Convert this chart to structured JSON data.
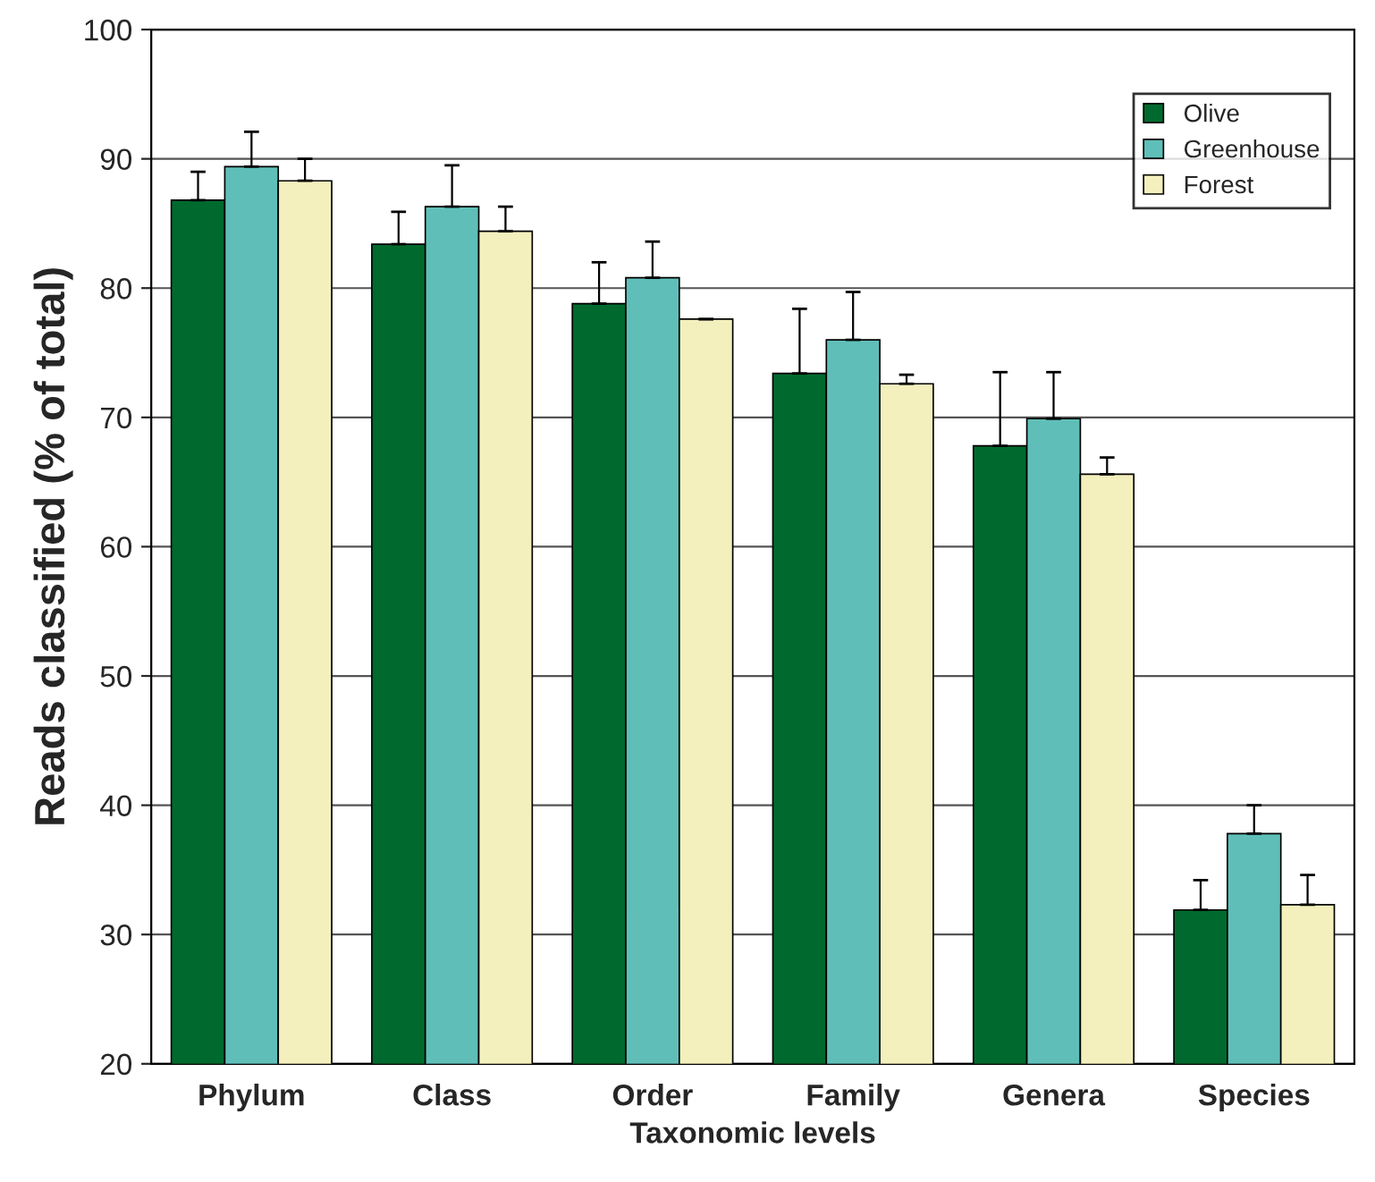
{
  "chart_data": {
    "type": "bar",
    "xlabel": "Taxonomic levels",
    "ylabel": "Reads classified (% of total)",
    "categories": [
      "Phylum",
      "Class",
      "Order",
      "Family",
      "Genera",
      "Species"
    ],
    "series": [
      {
        "name": "Olive",
        "color": "#006a2e",
        "values": [
          86.8,
          83.4,
          78.8,
          73.4,
          67.8,
          31.9
        ],
        "errors": [
          [
            86.8,
            89.0
          ],
          [
            83.4,
            85.9
          ],
          [
            78.8,
            82.0
          ],
          [
            73.4,
            78.4
          ],
          [
            67.8,
            73.5
          ],
          [
            31.9,
            34.2
          ]
        ]
      },
      {
        "name": "Greenhouse",
        "color": "#5fbfb8",
        "values": [
          89.4,
          86.3,
          80.8,
          76.0,
          69.9,
          37.8
        ],
        "errors": [
          [
            89.4,
            92.1
          ],
          [
            86.3,
            89.5
          ],
          [
            80.8,
            83.6
          ],
          [
            76.0,
            79.7
          ],
          [
            69.9,
            73.5
          ],
          [
            37.8,
            40.0
          ]
        ]
      },
      {
        "name": "Forest",
        "color": "#f3f0bd",
        "values": [
          88.3,
          84.4,
          77.6,
          72.6,
          65.6,
          32.3
        ],
        "errors": [
          [
            88.3,
            90.0
          ],
          [
            84.4,
            86.3
          ],
          null,
          [
            72.6,
            73.3
          ],
          [
            65.6,
            66.9
          ],
          [
            32.3,
            34.6
          ]
        ]
      }
    ],
    "ylim": [
      20,
      100
    ],
    "yticks": [
      20,
      30,
      40,
      50,
      60,
      70,
      80,
      90,
      100
    ],
    "grid": "y",
    "legend": "top right"
  }
}
